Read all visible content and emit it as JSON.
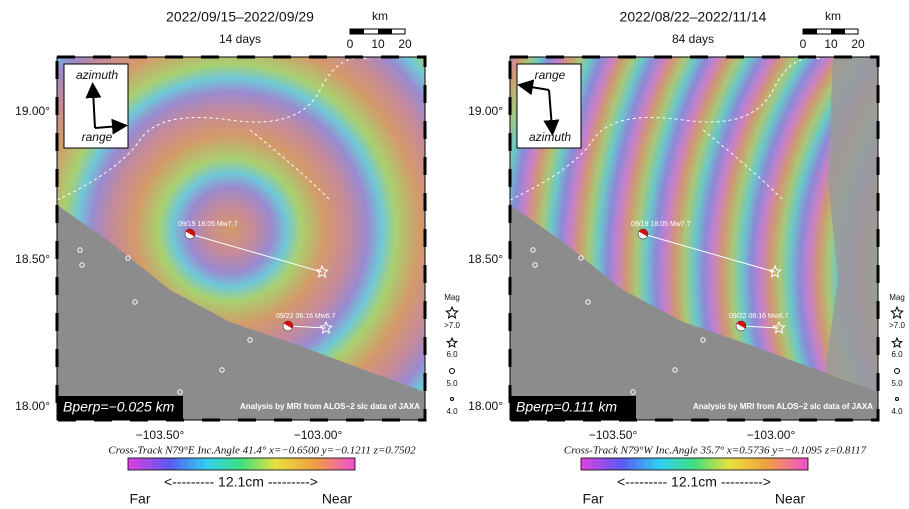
{
  "panels": [
    {
      "date_range": "2022/09/15–2022/09/29",
      "duration": "14 days",
      "scale": {
        "unit": "km",
        "labels": [
          "0",
          "10",
          "20"
        ]
      },
      "direction": {
        "top": "azimuth",
        "bottom": "range"
      },
      "lat_labels": [
        "19.00°",
        "18.50°",
        "18.00°"
      ],
      "lon_labels": [
        "−103.50°",
        "−103.00°"
      ],
      "events": [
        "09/19 18:05 Mw7.7",
        "09/22 06:16 Mw6.7"
      ],
      "bperp": "Bperp=−0.025 km",
      "credit": "Analysis by MRI from ALOS−2 slc data of JAXA",
      "caption": "Cross-Track N79°E  Inc.Angle 41.4°  x=−0.6500  y=−0.1211  z=0.7502",
      "colorbar": {
        "span": "<--------- 12.1cm --------->",
        "far": "Far",
        "near": "Near"
      },
      "mag_legend": {
        "title": "Mag",
        "labels": [
          ">7.0",
          "6.0",
          "5.0",
          "4.0"
        ]
      }
    },
    {
      "date_range": "2022/08/22–2022/11/14",
      "duration": "84 days",
      "scale": {
        "unit": "km",
        "labels": [
          "0",
          "10",
          "20"
        ]
      },
      "direction": {
        "top": "range",
        "bottom": "azimuth"
      },
      "lat_labels": [
        "19.00°",
        "18.50°",
        "18.00°"
      ],
      "lon_labels": [
        "−103.50°",
        "−103.00°"
      ],
      "events": [
        "09/19 18:05 Mw7.7",
        "09/22 06:16 Mw6.7"
      ],
      "bperp": "Bperp=0.111 km",
      "credit": "Analysis by MRI from ALOS−2 slc data of JAXA",
      "caption": "Cross-Track N79°W  Inc.Angle 35.7°  x=0.5736  y=−0.1095  z=0.8117",
      "colorbar": {
        "span": "<--------- 12.1cm --------->",
        "far": "Far",
        "near": "Near"
      },
      "mag_legend": {
        "title": "Mag",
        "labels": [
          ">7.0",
          "6.0",
          "5.0",
          "4.0"
        ]
      }
    }
  ]
}
